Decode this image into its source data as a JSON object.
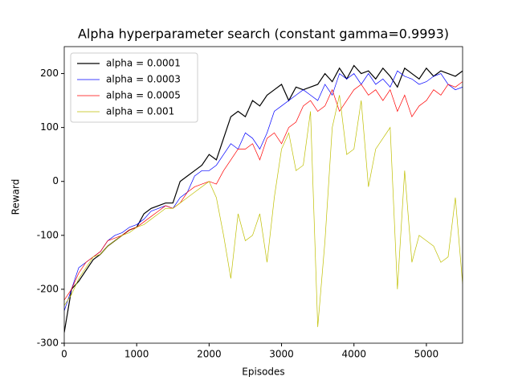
{
  "chart_data": {
    "type": "line",
    "title": "Alpha hyperparameter search (constant gamma=0.9993)",
    "xlabel": "Episodes",
    "ylabel": "Reward",
    "x": [
      0,
      100,
      200,
      300,
      400,
      500,
      600,
      700,
      800,
      900,
      1000,
      1100,
      1200,
      1300,
      1400,
      1500,
      1600,
      1700,
      1800,
      1900,
      2000,
      2100,
      2200,
      2300,
      2400,
      2500,
      2600,
      2700,
      2800,
      2900,
      3000,
      3100,
      3200,
      3300,
      3400,
      3500,
      3600,
      3700,
      3800,
      3900,
      4000,
      4100,
      4200,
      4300,
      4400,
      4500,
      4600,
      4700,
      4800,
      4900,
      5000,
      5100,
      5200,
      5300,
      5400,
      5500
    ],
    "series": [
      {
        "name": "alpha = 0.0001",
        "color": "#000000",
        "width": 1.2,
        "values": [
          -280,
          -200,
          -185,
          -165,
          -145,
          -135,
          -120,
          -110,
          -100,
          -90,
          -85,
          -60,
          -50,
          -45,
          -40,
          -40,
          0,
          10,
          20,
          30,
          50,
          40,
          80,
          120,
          130,
          120,
          150,
          140,
          160,
          170,
          180,
          150,
          175,
          170,
          175,
          180,
          200,
          185,
          210,
          190,
          215,
          200,
          205,
          190,
          210,
          195,
          175,
          210,
          200,
          190,
          210,
          195,
          205,
          200,
          195,
          205
        ]
      },
      {
        "name": "alpha = 0.0003",
        "color": "#0000ff",
        "width": 0.7,
        "values": [
          -240,
          -200,
          -160,
          -150,
          -140,
          -130,
          -110,
          -100,
          -95,
          -85,
          -80,
          -70,
          -55,
          -50,
          -45,
          -50,
          -30,
          -20,
          10,
          20,
          20,
          30,
          50,
          70,
          60,
          90,
          80,
          60,
          90,
          130,
          140,
          150,
          160,
          170,
          160,
          150,
          180,
          160,
          200,
          190,
          200,
          180,
          200,
          180,
          190,
          175,
          205,
          195,
          190,
          180,
          185,
          195,
          200,
          180,
          170,
          175
        ]
      },
      {
        "name": "alpha = 0.0005",
        "color": "#ff0000",
        "width": 0.7,
        "values": [
          -220,
          -200,
          -170,
          -150,
          -140,
          -130,
          -110,
          -105,
          -100,
          -90,
          -85,
          -75,
          -65,
          -55,
          -45,
          -50,
          -40,
          -20,
          -10,
          -5,
          0,
          -5,
          20,
          40,
          60,
          60,
          70,
          40,
          80,
          90,
          70,
          100,
          110,
          140,
          150,
          130,
          140,
          170,
          130,
          150,
          170,
          180,
          160,
          170,
          150,
          170,
          130,
          160,
          120,
          140,
          150,
          170,
          160,
          180,
          175,
          185
        ]
      },
      {
        "name": "alpha = 0.001",
        "color": "#bfbf00",
        "width": 0.7,
        "values": [
          -230,
          -210,
          -180,
          -160,
          -140,
          -135,
          -120,
          -110,
          -100,
          -95,
          -85,
          -80,
          -70,
          -60,
          -50,
          -50,
          -40,
          -30,
          -20,
          -10,
          0,
          -30,
          -100,
          -180,
          -60,
          -110,
          -100,
          -60,
          -150,
          -30,
          60,
          90,
          20,
          30,
          130,
          -270,
          -110,
          100,
          160,
          50,
          60,
          150,
          -10,
          60,
          80,
          100,
          -200,
          20,
          -150,
          -100,
          -110,
          -120,
          -150,
          -140,
          -30,
          -190
        ]
      }
    ],
    "xlim": [
      0,
      5500
    ],
    "xticks": [
      0,
      1000,
      2000,
      3000,
      4000,
      5000
    ],
    "ylim": [
      -300,
      250
    ],
    "yticks": [
      -300,
      -200,
      -100,
      0,
      100,
      200
    ],
    "legend": "upper left",
    "grid": false
  }
}
